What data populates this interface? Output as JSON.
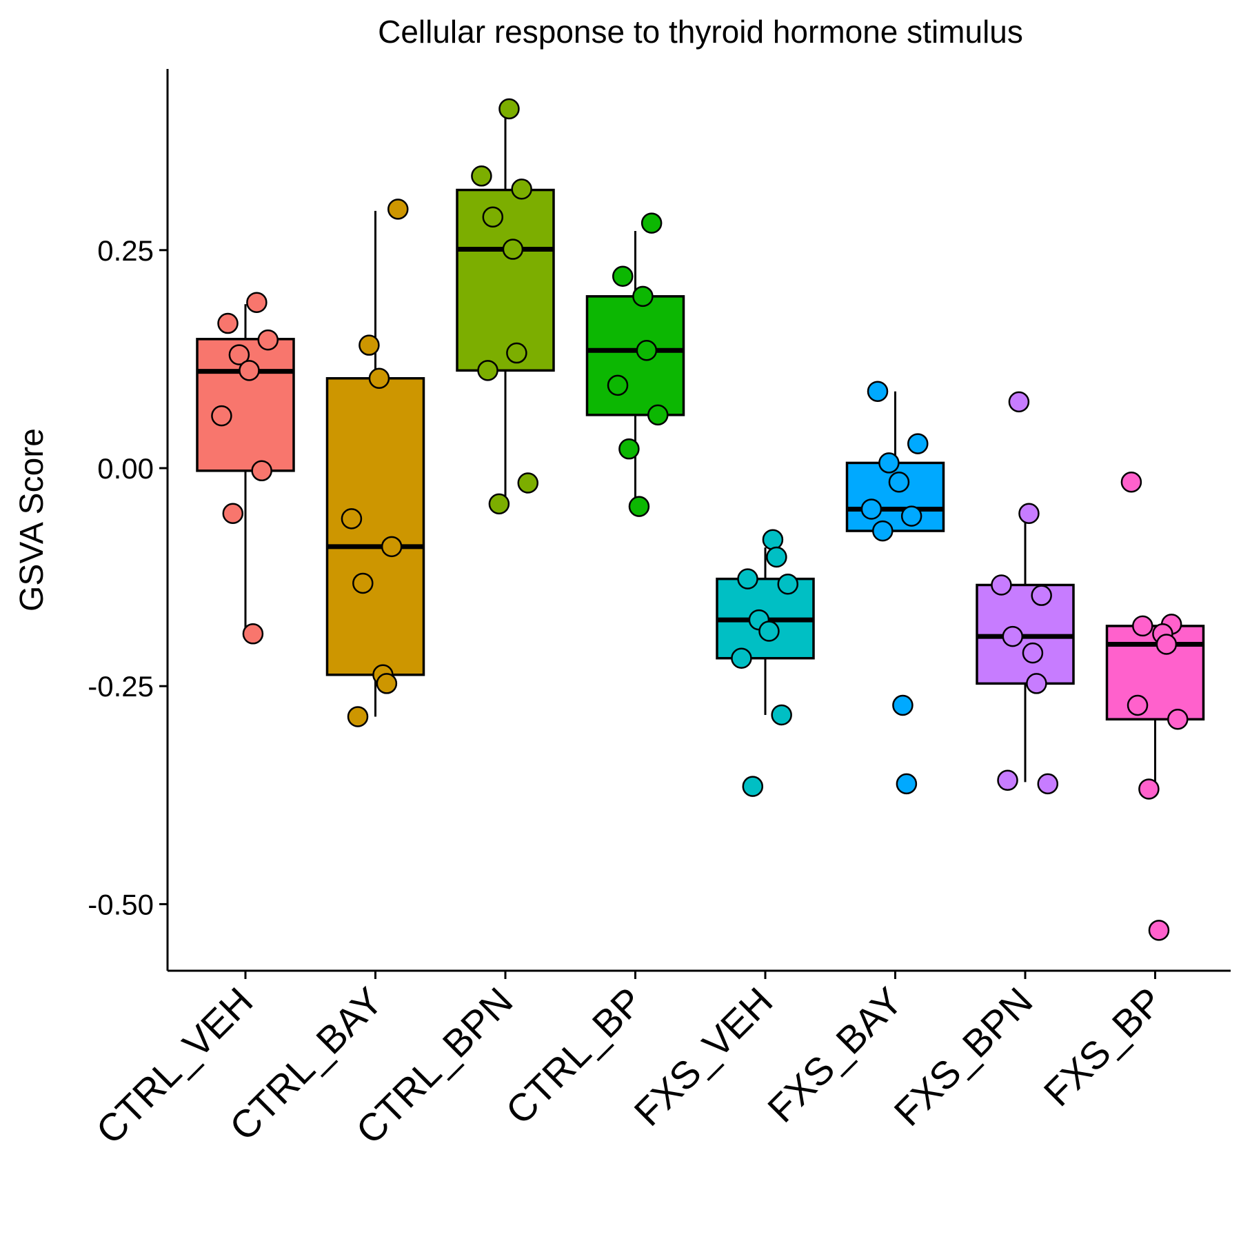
{
  "chart_data": {
    "type": "boxplot",
    "title": "Cellular response to thyroid hormone stimulus",
    "xlabel": "",
    "ylabel": "GSVA Score",
    "ylim": [
      -0.575,
      0.46
    ],
    "yticks": [
      0.25,
      0.0,
      -0.25,
      -0.5
    ],
    "ytick_labels": [
      "0.25",
      "0.00",
      "-0.25",
      "-0.50"
    ],
    "grid": false,
    "legend": "none",
    "groups": [
      {
        "name": "CTRL_VEH",
        "color": "#F8766D",
        "box": {
          "whisker_low": -0.19,
          "q1": -0.003,
          "median": 0.111,
          "q3": 0.148,
          "whisker_high": 0.188
        },
        "points": [
          0.19,
          0.166,
          0.147,
          0.13,
          0.112,
          0.06,
          -0.003,
          -0.052,
          -0.19
        ]
      },
      {
        "name": "CTRL_BAY",
        "color": "#CD9600",
        "box": {
          "whisker_low": -0.285,
          "q1": -0.237,
          "median": -0.09,
          "q3": 0.103,
          "whisker_high": 0.295
        },
        "points": [
          0.297,
          0.141,
          0.103,
          -0.058,
          -0.09,
          -0.132,
          -0.237,
          -0.247,
          -0.285
        ]
      },
      {
        "name": "CTRL_BPN",
        "color": "#7CAE00",
        "box": {
          "whisker_low": -0.041,
          "q1": 0.112,
          "median": 0.251,
          "q3": 0.319,
          "whisker_high": 0.405
        },
        "points": [
          0.412,
          0.335,
          0.32,
          0.288,
          0.251,
          0.132,
          0.112,
          -0.017,
          -0.041
        ]
      },
      {
        "name": "CTRL_BP",
        "color": "#0CB702",
        "box": {
          "whisker_low": -0.044,
          "q1": 0.061,
          "median": 0.135,
          "q3": 0.197,
          "whisker_high": 0.272
        },
        "points": [
          0.281,
          0.22,
          0.197,
          0.135,
          0.095,
          0.061,
          0.022,
          -0.044
        ]
      },
      {
        "name": "FXS_VEH",
        "color": "#00BFC4",
        "box": {
          "whisker_low": -0.283,
          "q1": -0.218,
          "median": -0.174,
          "q3": -0.127,
          "whisker_high": -0.091
        },
        "points": [
          -0.082,
          -0.102,
          -0.127,
          -0.133,
          -0.174,
          -0.187,
          -0.218,
          -0.283,
          -0.365
        ]
      },
      {
        "name": "FXS_BAY",
        "color": "#00A9FF",
        "box": {
          "whisker_low": -0.072,
          "q1": -0.072,
          "median": -0.047,
          "q3": 0.006,
          "whisker_high": 0.088
        },
        "points": [
          0.088,
          0.028,
          0.006,
          -0.016,
          -0.047,
          -0.055,
          -0.072,
          -0.272,
          -0.362
        ]
      },
      {
        "name": "FXS_BPN",
        "color": "#C77CFF",
        "box": {
          "whisker_low": -0.36,
          "q1": -0.247,
          "median": -0.193,
          "q3": -0.134,
          "whisker_high": -0.052
        },
        "points": [
          0.076,
          -0.052,
          -0.134,
          -0.146,
          -0.193,
          -0.212,
          -0.247,
          -0.358,
          -0.362
        ]
      },
      {
        "name": "FXS_BP",
        "color": "#FF61CC",
        "box": {
          "whisker_low": -0.368,
          "q1": -0.288,
          "median": -0.202,
          "q3": -0.181,
          "whisker_high": -0.181
        },
        "points": [
          -0.016,
          -0.179,
          -0.181,
          -0.19,
          -0.202,
          -0.272,
          -0.288,
          -0.368,
          -0.53
        ]
      }
    ]
  }
}
